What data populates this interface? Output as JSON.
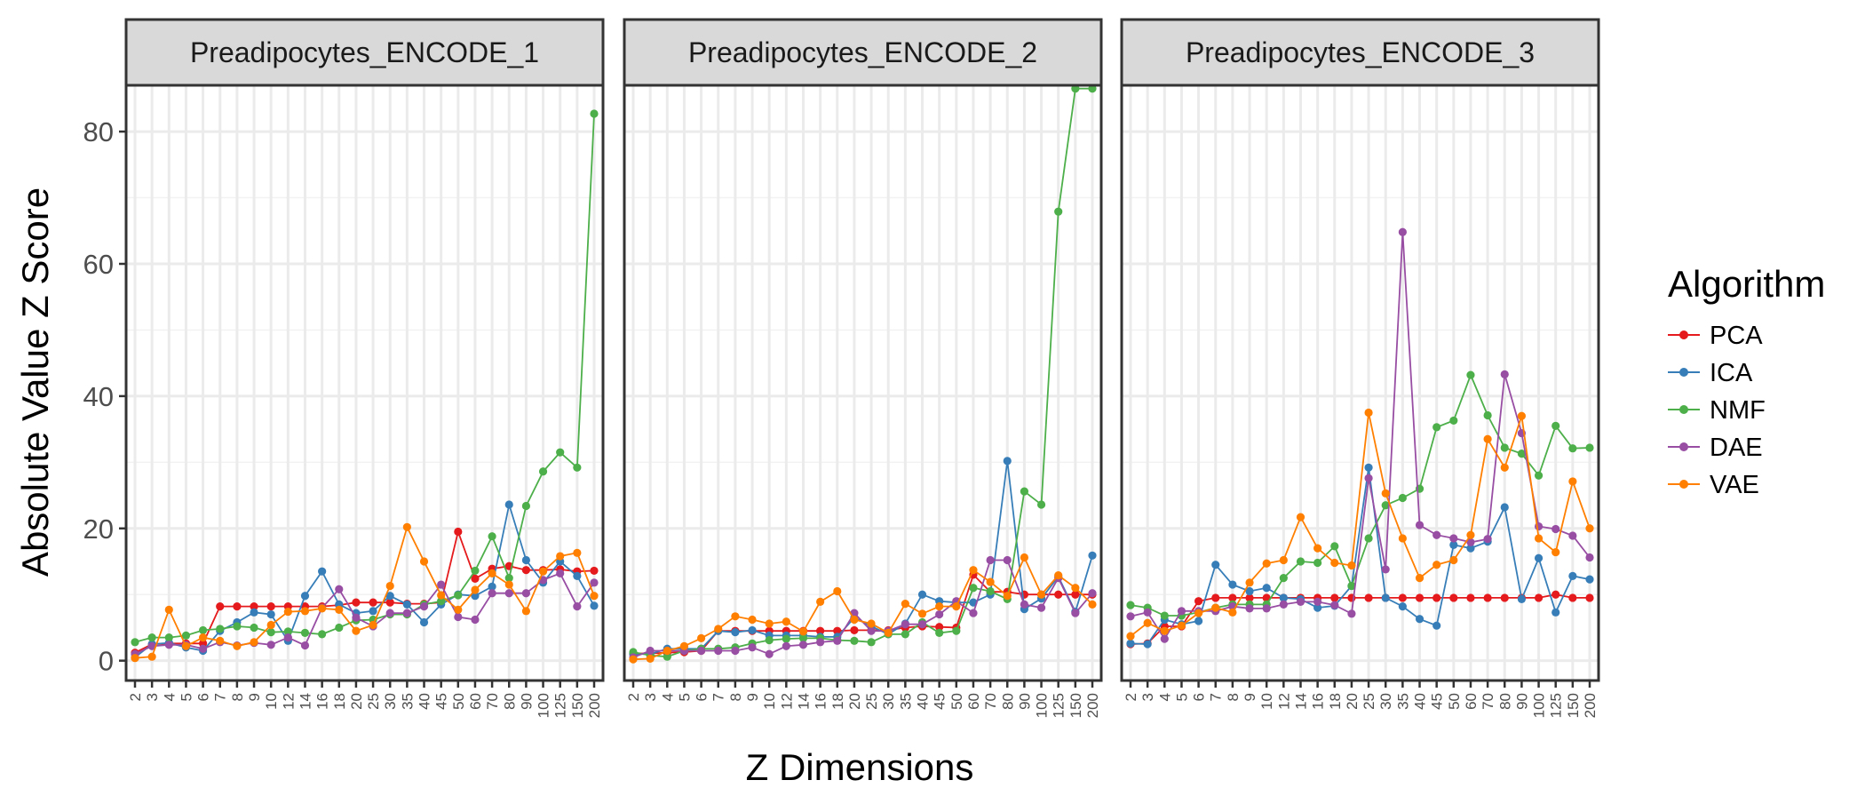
{
  "chart_data": {
    "type": "line",
    "xlabel": "Z Dimensions",
    "ylabel": "Absolute Value Z Score",
    "ylim": [
      -3,
      87
    ],
    "yticks": [
      0,
      20,
      40,
      60,
      80
    ],
    "categories": [
      "2",
      "3",
      "4",
      "5",
      "6",
      "7",
      "8",
      "9",
      "10",
      "12",
      "14",
      "16",
      "18",
      "20",
      "25",
      "30",
      "35",
      "40",
      "45",
      "50",
      "60",
      "70",
      "80",
      "90",
      "100",
      "125",
      "150",
      "200"
    ],
    "legend": {
      "title": "Algorithm",
      "placement": "right",
      "entries": [
        {
          "name": "PCA",
          "color": "#E41A1C"
        },
        {
          "name": "ICA",
          "color": "#377EB8"
        },
        {
          "name": "NMF",
          "color": "#4DAF4A"
        },
        {
          "name": "DAE",
          "color": "#984EA3"
        },
        {
          "name": "VAE",
          "color": "#FF7F00"
        }
      ]
    },
    "panels": [
      {
        "title": "Preadipocytes_ENCODE_1",
        "series": [
          {
            "name": "PCA",
            "values": [
              1.2,
              2.5,
              2.6,
              2.6,
              2.6,
              8.2,
              8.2,
              8.2,
              8.2,
              8.2,
              8.2,
              8.2,
              8.4,
              8.8,
              8.8,
              8.8,
              8.6,
              8.6,
              8.8,
              19.5,
              12.4,
              13.9,
              14.3,
              13.7,
              13.7,
              13.8,
              13.5,
              13.6
            ]
          },
          {
            "name": "ICA",
            "values": [
              0.5,
              2.5,
              2.7,
              2.0,
              1.5,
              4.5,
              5.8,
              7.3,
              7.0,
              3.0,
              9.8,
              13.5,
              8.5,
              7.2,
              7.5,
              9.8,
              8.5,
              5.8,
              8.5,
              10.0,
              9.8,
              11.2,
              23.6,
              15.2,
              11.8,
              15.0,
              12.8,
              8.3
            ]
          },
          {
            "name": "NMF",
            "values": [
              2.8,
              3.5,
              3.5,
              3.8,
              4.6,
              4.8,
              5.2,
              5.0,
              4.3,
              4.4,
              4.2,
              4.0,
              5.0,
              6.1,
              6.2,
              7.0,
              7.0,
              8.5,
              9.0,
              9.9,
              13.6,
              18.8,
              12.5,
              23.4,
              28.6,
              31.5,
              29.2,
              82.7
            ]
          },
          {
            "name": "DAE",
            "values": [
              1.0,
              2.2,
              2.4,
              2.4,
              1.8,
              2.8,
              2.3,
              2.7,
              2.4,
              3.5,
              2.3,
              8.0,
              10.8,
              6.5,
              5.2,
              7.2,
              7.2,
              8.2,
              11.5,
              6.6,
              6.2,
              10.2,
              10.2,
              10.2,
              12.2,
              13.2,
              8.2,
              11.8
            ]
          },
          {
            "name": "VAE",
            "values": [
              0.4,
              0.6,
              7.7,
              2.2,
              3.5,
              3.0,
              2.2,
              2.8,
              5.4,
              7.4,
              7.5,
              7.9,
              7.7,
              4.5,
              5.4,
              11.3,
              20.2,
              15.0,
              9.9,
              7.7,
              10.7,
              13.2,
              11.5,
              7.5,
              13.5,
              15.8,
              16.3,
              9.8
            ]
          }
        ]
      },
      {
        "title": "Preadipocytes_ENCODE_2",
        "series": [
          {
            "name": "PCA",
            "values": [
              1.1,
              1.1,
              1.2,
              1.3,
              1.5,
              4.5,
              4.5,
              4.5,
              4.5,
              4.5,
              4.5,
              4.5,
              4.5,
              4.6,
              4.6,
              4.6,
              5.0,
              5.2,
              5.1,
              5.0,
              13.0,
              10.4,
              10.4,
              10.0,
              10.0,
              10.0,
              10.0,
              10.0
            ]
          },
          {
            "name": "ICA",
            "values": [
              1.0,
              1.0,
              1.8,
              1.8,
              1.8,
              4.5,
              4.3,
              4.6,
              3.8,
              3.8,
              3.8,
              3.6,
              3.6,
              6.5,
              5.2,
              4.0,
              5.6,
              10.0,
              9.0,
              8.8,
              8.8,
              10.0,
              30.2,
              7.8,
              9.4,
              12.7,
              7.4,
              15.9
            ]
          },
          {
            "name": "NMF",
            "values": [
              1.3,
              0.8,
              0.6,
              1.5,
              1.8,
              1.8,
              2.0,
              2.6,
              3.1,
              3.3,
              3.4,
              3.4,
              3.1,
              3.0,
              2.8,
              4.0,
              4.0,
              5.8,
              4.2,
              4.5,
              11.0,
              10.5,
              9.3,
              25.6,
              23.6,
              67.9,
              86.5,
              86.5
            ]
          },
          {
            "name": "DAE",
            "values": [
              0.5,
              1.5,
              1.5,
              1.5,
              1.5,
              1.5,
              1.5,
              2.0,
              1.0,
              2.2,
              2.4,
              2.8,
              3.0,
              7.2,
              4.5,
              4.5,
              5.5,
              5.5,
              7.0,
              9.0,
              7.2,
              15.2,
              15.2,
              8.5,
              8.0,
              12.5,
              7.2,
              10.2
            ]
          },
          {
            "name": "VAE",
            "values": [
              0.2,
              0.3,
              1.5,
              2.2,
              3.4,
              4.8,
              6.7,
              6.2,
              5.6,
              5.9,
              4.4,
              8.9,
              10.5,
              6.2,
              5.6,
              4.2,
              8.6,
              7.1,
              8.2,
              8.2,
              13.7,
              11.9,
              9.8,
              15.6,
              10.0,
              12.9,
              11.0,
              8.5
            ]
          }
        ]
      },
      {
        "title": "Preadipocytes_ENCODE_3",
        "series": [
          {
            "name": "PCA",
            "values": [
              2.5,
              2.6,
              5.2,
              5.2,
              9.0,
              9.5,
              9.5,
              9.5,
              9.5,
              9.5,
              9.5,
              9.5,
              9.5,
              9.5,
              9.5,
              9.5,
              9.5,
              9.5,
              9.5,
              9.5,
              9.5,
              9.5,
              9.5,
              9.5,
              9.5,
              10.0,
              9.5,
              9.5
            ]
          },
          {
            "name": "ICA",
            "values": [
              2.6,
              2.5,
              6.2,
              5.5,
              6.0,
              14.5,
              11.5,
              10.5,
              11.0,
              9.5,
              9.3,
              8.0,
              8.3,
              11.3,
              29.2,
              9.5,
              8.2,
              6.3,
              5.3,
              17.5,
              17.0,
              18.0,
              23.2,
              9.3,
              15.5,
              7.3,
              12.8,
              12.3
            ]
          },
          {
            "name": "NMF",
            "values": [
              8.4,
              8.0,
              6.8,
              6.8,
              7.3,
              8.0,
              8.5,
              8.5,
              8.5,
              12.5,
              15.0,
              14.8,
              17.3,
              11.3,
              18.5,
              23.5,
              24.6,
              26.0,
              35.3,
              36.3,
              43.2,
              37.1,
              32.2,
              31.3,
              28.0,
              35.5,
              32.1,
              32.2
            ]
          },
          {
            "name": "DAE",
            "values": [
              6.7,
              7.3,
              3.3,
              7.5,
              7.5,
              7.5,
              8.2,
              7.9,
              7.9,
              8.5,
              8.9,
              8.9,
              8.4,
              7.1,
              27.6,
              13.8,
              64.8,
              20.5,
              19.0,
              18.5,
              17.9,
              18.4,
              43.3,
              34.4,
              20.3,
              19.9,
              18.9,
              15.6
            ]
          },
          {
            "name": "VAE",
            "values": [
              3.7,
              5.7,
              4.5,
              5.3,
              7.2,
              8.0,
              7.3,
              11.8,
              14.7,
              15.2,
              21.7,
              17.0,
              14.8,
              14.4,
              37.5,
              25.3,
              18.5,
              12.5,
              14.5,
              15.2,
              19.0,
              33.5,
              29.2,
              37.0,
              18.5,
              16.4,
              27.1,
              20.0
            ]
          }
        ]
      }
    ]
  }
}
